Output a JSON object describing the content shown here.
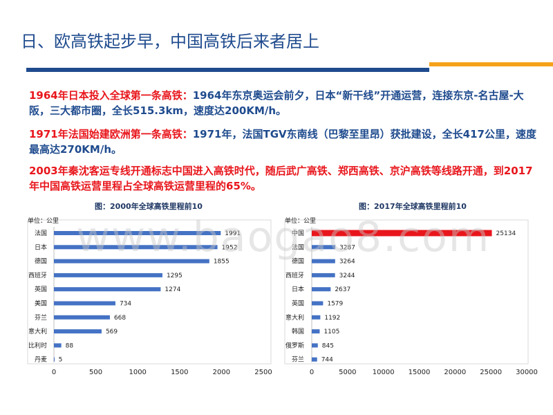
{
  "title": "日、欧高铁起步早，中国高铁后来者居上",
  "colors": {
    "accent_blue": "#1f4b8e",
    "accent_orange": "#f5a21b",
    "highlight_red": "#e8161c",
    "bar_blue": "#4472c4"
  },
  "paragraphs": [
    {
      "lead": "1964年日本投入全球第一条高铁：",
      "body": "1964年东京奥运会前夕，日本“新干线”开通运营，连接东京-名古屋-大阪，三大都市圈，全长515.3km，速度达200KM/h。"
    },
    {
      "lead": "1971年法国始建欧洲第一条高铁：",
      "body": "1971年，法国TGV东南线（巴黎至里昂）获批建设，全长417公里，速度最高达270KM/h。"
    },
    {
      "lead": "2003年秦沈客运专线开通标志中国进入高铁时代，随后武广高铁、郑西高铁、京沪高铁等线路开通，到2017年中国高铁运营里程占全球高铁运营里程的65%。",
      "body": ""
    }
  ],
  "watermark": "www.baogao8.com",
  "chart_data": [
    {
      "type": "bar",
      "orientation": "horizontal",
      "title": "图：2000年全球高铁里程前10",
      "unit_label": "单位：公里",
      "categories": [
        "法国",
        "日本",
        "德国",
        "西班牙",
        "英国",
        "美国",
        "芬兰",
        "意大利",
        "比利时",
        "丹麦"
      ],
      "values": [
        1991,
        1952,
        1855,
        1295,
        1274,
        734,
        668,
        569,
        88,
        5
      ],
      "xlim": [
        0,
        2500
      ],
      "xticks": [
        0,
        500,
        1000,
        1500,
        2000,
        2500
      ]
    },
    {
      "type": "bar",
      "orientation": "horizontal",
      "title": "图：2017年全球高铁里程前10",
      "unit_label": "单位：公里",
      "categories": [
        "中国",
        "法国",
        "德国",
        "西班牙",
        "日本",
        "英国",
        "意大利",
        "韩国",
        "俄罗斯",
        "芬兰"
      ],
      "values": [
        25134,
        3287,
        3264,
        3244,
        2637,
        1579,
        1192,
        1105,
        845,
        744
      ],
      "highlight_index": 0,
      "xlim": [
        0,
        30000
      ],
      "xticks": [
        0,
        5000,
        10000,
        15000,
        20000,
        25000,
        30000
      ]
    }
  ]
}
